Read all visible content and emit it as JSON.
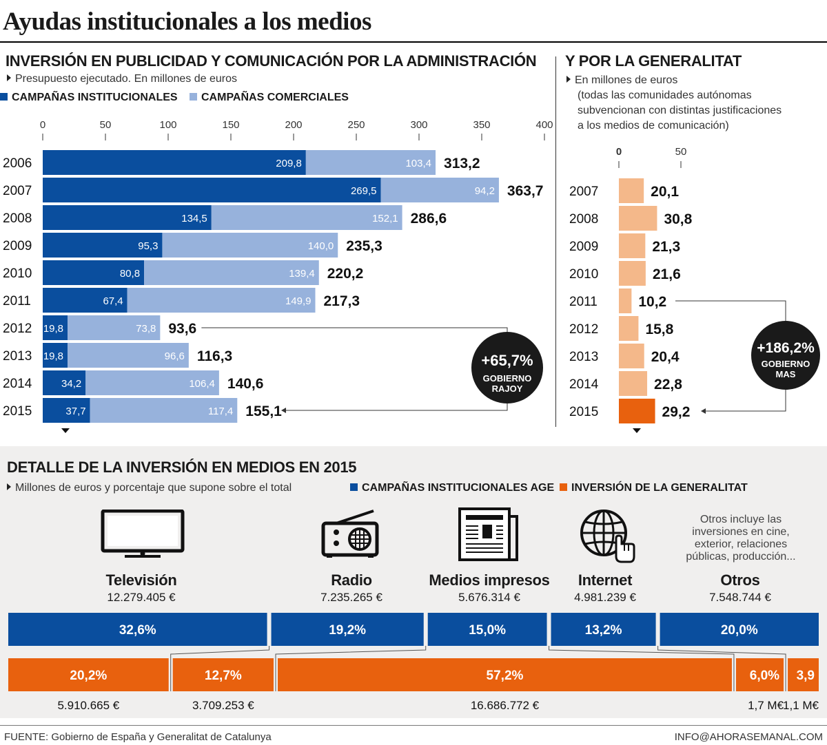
{
  "title": "Ayudas institucionales a los medios",
  "admin_section": {
    "title": "INVERSIÓN EN PUBLICIDAD Y COMUNICACIÓN POR LA ADMINISTRACIÓN",
    "subtitle": "Presupuesto ejecutado. En millones de euros",
    "legend": [
      "CAMPAÑAS INSTITUCIONALES",
      "CAMPAÑAS COMERCIALES"
    ],
    "badge": {
      "value": "+65,7%",
      "line1": "GOBIERNO",
      "line2": "RAJOY"
    }
  },
  "gen_section": {
    "title": "Y POR LA GENERALITAT",
    "subtitle_lines": [
      "En millones de euros",
      "(todas las comunidades autónomas",
      "subvencionan con distintas justificaciones",
      "a los medios de comunicación)"
    ],
    "badge": {
      "value": "+186,2%",
      "line1": "GOBIERNO",
      "line2": "MAS"
    }
  },
  "media_section": {
    "title": "DETALLE DE LA INVERSIÓN EN MEDIOS EN 2015",
    "subtitle": "Millones de euros y porcentaje que supone sobre el total",
    "legend": [
      "CAMPAÑAS INSTITUCIONALES AGE",
      "INVERSIÓN DE LA GENERALITAT"
    ],
    "otros_note": "Otros incluye las inversiones en cine, exterior, relaciones públicas, producción...",
    "categories": [
      {
        "name": "Televisión",
        "amount": "12.279.405 €"
      },
      {
        "name": "Radio",
        "amount": "7.235.265 €"
      },
      {
        "name": "Medios impresos",
        "amount": "5.676.314 €"
      },
      {
        "name": "Internet",
        "amount": "4.981.239 €"
      },
      {
        "name": "Otros",
        "amount": "7.548.744 €"
      }
    ],
    "gen_amounts": [
      "5.910.665 €",
      "3.709.253 €",
      "16.686.772 €",
      "1,7 M€",
      "1,1 M€"
    ]
  },
  "footer": {
    "source": "FUENTE: Gobierno de España y Generalitat de Catalunya",
    "contact": "INFO@AHORASEMANAL.COM"
  },
  "colors": {
    "institucional": "#0a4e9e",
    "comercial": "#97b2dc",
    "generalitat": "#f4b88a",
    "generalitat_2015": "#e8610e",
    "gen_media": "#e8610e"
  },
  "chart_data": [
    {
      "type": "bar",
      "orientation": "horizontal",
      "stacked": true,
      "title": "INVERSIÓN EN PUBLICIDAD Y COMUNICACIÓN POR LA ADMINISTRACIÓN",
      "categories": [
        "2006",
        "2007",
        "2008",
        "2009",
        "2010",
        "2011",
        "2012",
        "2013",
        "2014",
        "2015"
      ],
      "series": [
        {
          "name": "CAMPAÑAS INSTITUCIONALES",
          "values": [
            209.8,
            269.5,
            134.5,
            95.3,
            80.8,
            67.4,
            19.8,
            19.8,
            34.2,
            37.7
          ],
          "labels": [
            "209,8",
            "269,5",
            "134,5",
            "95,3",
            "80,8",
            "67,4",
            "19,8",
            "19,8",
            "34,2",
            "37,7"
          ]
        },
        {
          "name": "CAMPAÑAS COMERCIALES",
          "values": [
            103.4,
            94.2,
            152.1,
            140.0,
            139.4,
            149.9,
            73.8,
            96.6,
            106.4,
            117.4
          ],
          "labels": [
            "103,4",
            "94,2",
            "152,1",
            "140,0",
            "139,4",
            "149,9",
            "73,8",
            "96,6",
            "106,4",
            "117,4"
          ]
        }
      ],
      "totals": [
        "313,2",
        "363,7",
        "286,6",
        "235,3",
        "220,2",
        "217,3",
        "93,6",
        "116,3",
        "140,6",
        "155,1"
      ],
      "xlim": [
        0,
        400
      ],
      "xticks": [
        "0",
        "50",
        "100",
        "150",
        "200",
        "250",
        "300",
        "350",
        "400"
      ]
    },
    {
      "type": "bar",
      "orientation": "horizontal",
      "title": "Y POR LA GENERALITAT",
      "categories": [
        "2007",
        "2008",
        "2009",
        "2010",
        "2011",
        "2012",
        "2013",
        "2014",
        "2015"
      ],
      "values": [
        20.1,
        30.8,
        21.3,
        21.6,
        10.2,
        15.8,
        20.4,
        22.8,
        29.2
      ],
      "labels": [
        "20,1",
        "30,8",
        "21,3",
        "21,6",
        "10,2",
        "15,8",
        "20,4",
        "22,8",
        "29,2"
      ],
      "xticks": [
        "0",
        "50"
      ]
    },
    {
      "type": "bar",
      "orientation": "horizontal",
      "stacked": true,
      "title": "DETALLE DE LA INVERSIÓN EN MEDIOS EN 2015",
      "categories": [
        "Televisión",
        "Radio",
        "Medios impresos",
        "Internet",
        "Otros"
      ],
      "series": [
        {
          "name": "CAMPAÑAS INSTITUCIONALES AGE",
          "values": [
            32.6,
            19.2,
            15.0,
            13.2,
            20.0
          ],
          "labels": [
            "32,6%",
            "19,2%",
            "15,0%",
            "13,2%",
            "20,0%"
          ]
        },
        {
          "name": "INVERSIÓN DE LA GENERALITAT",
          "values": [
            20.2,
            12.7,
            57.2,
            6.0,
            3.9
          ],
          "labels": [
            "20,2%",
            "12,7%",
            "57,2%",
            "6,0%",
            "3,9"
          ]
        }
      ]
    }
  ]
}
